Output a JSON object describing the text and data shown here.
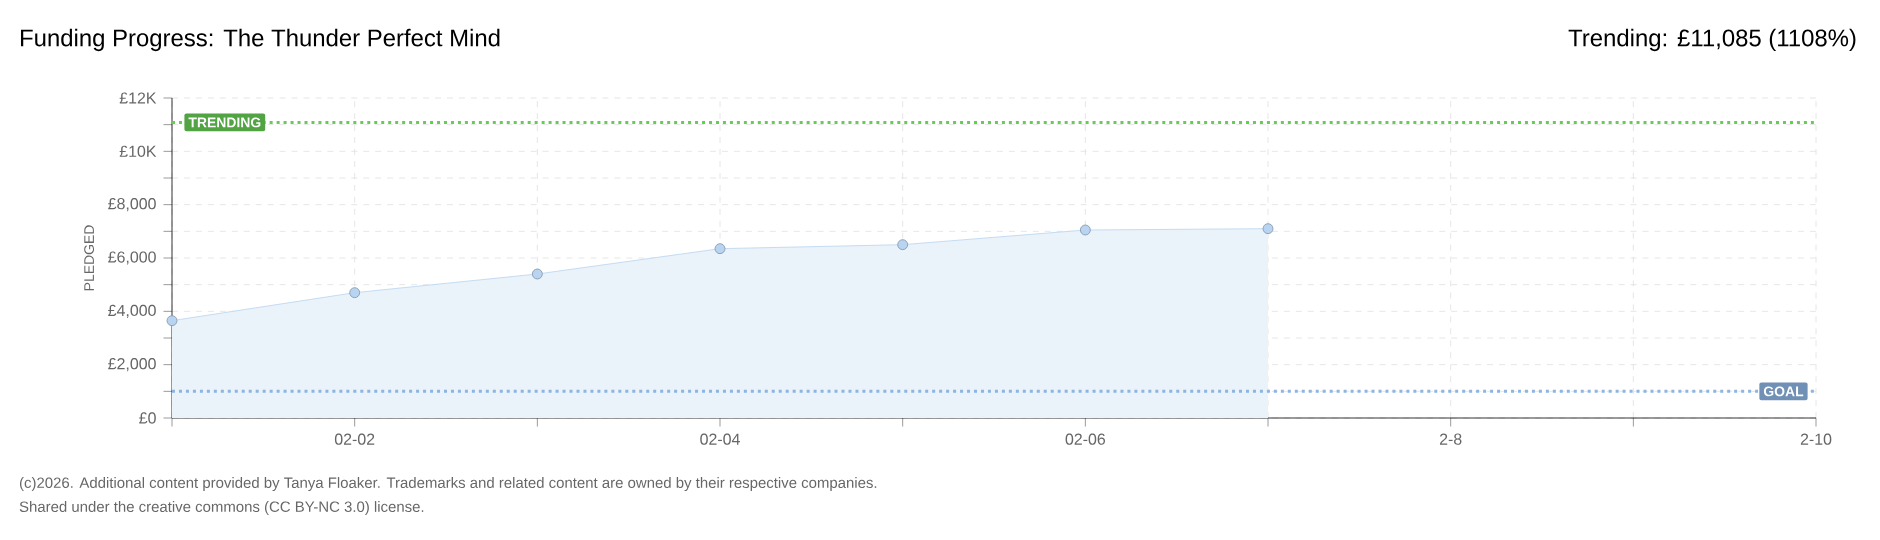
{
  "chart_data": {
    "type": "area",
    "title": "Funding Progress: The Thunder Perfect Mind",
    "subtitle": "Trending: £11,085 (1108%)",
    "ylabel": "PLEDGED",
    "categories": [
      null,
      "02-02",
      null,
      "02-04",
      null,
      "02-06",
      null,
      "2-8",
      null,
      "2-10"
    ],
    "series": [
      {
        "color": "#b8d4f0",
        "values": [
          3650,
          4700,
          5400,
          6350,
          6500,
          7050,
          7100,
          null,
          null,
          null
        ]
      }
    ],
    "marker": "circle",
    "grid": true,
    "ylim": [
      0,
      12000
    ],
    "yticks": [
      {
        "value": 0,
        "label": "£0"
      },
      {
        "value": 1000,
        "label": null
      },
      {
        "value": 2000,
        "label": "£2,000"
      },
      {
        "value": 3000,
        "label": null
      },
      {
        "value": 4000,
        "label": "£4,000"
      },
      {
        "value": 5000,
        "label": null
      },
      {
        "value": 6000,
        "label": "£6,000"
      },
      {
        "value": 7000,
        "label": null
      },
      {
        "value": 8000,
        "label": "£8,000"
      },
      {
        "value": 9000,
        "label": null
      },
      {
        "value": 10000,
        "label": "£10K"
      },
      {
        "value": 11000,
        "label": null
      },
      {
        "value": 12000,
        "label": "£12K"
      }
    ],
    "ref_lines": [
      {
        "axis": "y",
        "value": 11085,
        "label": "TRENDING",
        "color": "#66cc55",
        "line_style": "dotted"
      },
      {
        "axis": "y",
        "value": 1000,
        "label": "GOAL",
        "color": "#8db4e2",
        "line_style": "dotted"
      }
    ],
    "annotations": [
      "(c)2026. Additional content provided by Tanya Floaker. Trademarks and related content are owned by their respective companies.",
      "Shared under the creative commons (CC BY-NC 3.0) license."
    ]
  }
}
